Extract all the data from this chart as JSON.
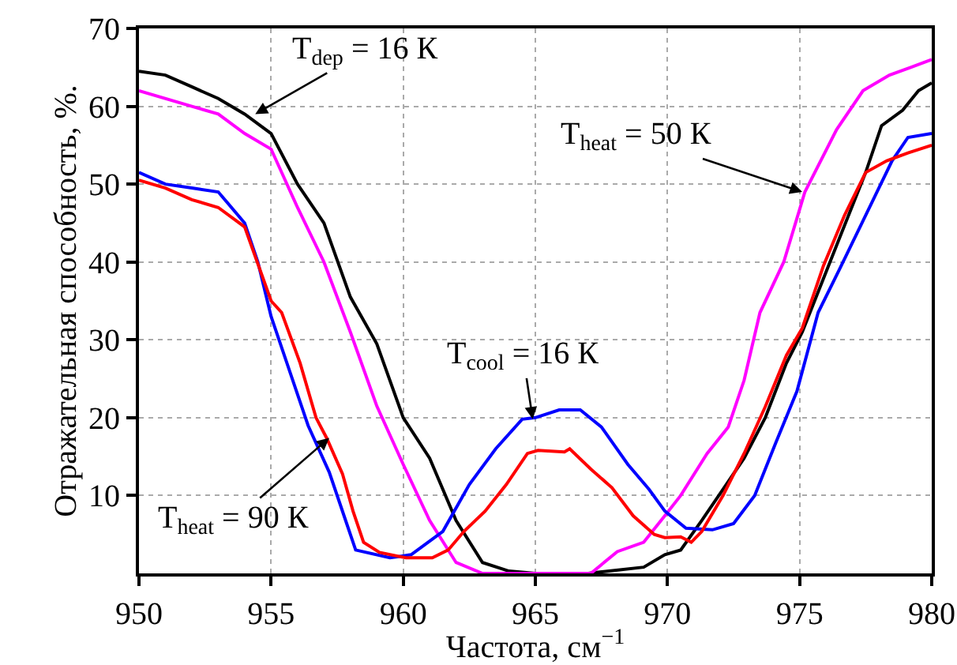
{
  "chart_data": {
    "type": "line",
    "xlabel": "Частота, см$^{−1}$",
    "ylabel": "Отражательная способность, %.",
    "xlim": [
      950,
      980
    ],
    "ylim": [
      0,
      70
    ],
    "xticks": [
      950,
      955,
      960,
      965,
      970,
      975,
      980
    ],
    "yticks": [
      10,
      20,
      30,
      40,
      50,
      60,
      70
    ],
    "grid": true,
    "marker": "none",
    "line_style": "solid",
    "series": [
      {
        "color": "#000000",
        "x": [
          950,
          951,
          952,
          953,
          954,
          955,
          956,
          957,
          958,
          959,
          960,
          961,
          962,
          963,
          964,
          965,
          967,
          969.1,
          969.9,
          970.5,
          971.3,
          972.1,
          972.9,
          973.7,
          974.5,
          975.1,
          976.5,
          977.5,
          978.1,
          978.9,
          979.5,
          980
        ],
        "values": [
          64.5,
          64,
          62.5,
          61,
          59,
          56.5,
          50,
          45,
          35.5,
          29.5,
          20,
          14.8,
          6.8,
          1.4,
          0.3,
          0,
          0,
          0.8,
          2.4,
          3,
          6.8,
          10.8,
          14.8,
          20,
          27,
          31,
          43,
          51.5,
          57.5,
          59.5,
          62,
          63
        ]
      },
      {
        "color": "#ff00ff",
        "x": [
          950,
          952,
          953,
          954,
          955,
          956,
          957,
          958,
          959,
          960,
          961,
          962,
          963,
          965,
          967.1,
          968.1,
          969.1,
          969.9,
          970.5,
          971.5,
          972.3,
          972.9,
          973.5,
          974.4,
          975.2,
          976.4,
          977.4,
          978.4,
          979.2,
          980
        ],
        "values": [
          62,
          60,
          59,
          56.5,
          54.5,
          47,
          40,
          31,
          21.5,
          14,
          6.8,
          1.4,
          0,
          0,
          0,
          2.8,
          4,
          7.4,
          10,
          15.4,
          18.8,
          24.8,
          33.5,
          40,
          49,
          57,
          62,
          64,
          65,
          66
        ]
      },
      {
        "color": "#0000ff",
        "x": [
          950,
          951,
          952,
          953,
          954,
          954.5,
          955,
          955.6,
          956.4,
          957.2,
          957.8,
          958.2,
          959.5,
          960.3,
          961.5,
          962.5,
          963.5,
          964.5,
          965,
          965.9,
          966.7,
          967.5,
          968.5,
          969.3,
          969.9,
          970.7,
          971.7,
          972.5,
          973.3,
          974.1,
          974.9,
          975.7,
          976.5,
          977.5,
          978.5,
          979.1,
          980
        ],
        "values": [
          51.5,
          50,
          49.5,
          49,
          45,
          40,
          33,
          27,
          19,
          13,
          7,
          3,
          2,
          2.4,
          5.4,
          11.4,
          16,
          19.8,
          20,
          21,
          21,
          18.8,
          14,
          10.8,
          8,
          5.8,
          5.6,
          6.4,
          10,
          16.8,
          23.4,
          33.5,
          39,
          46,
          53,
          56,
          56.5
        ]
      },
      {
        "color": "#ff0000",
        "x": [
          950,
          951,
          952,
          953,
          954,
          955,
          955.4,
          956.1,
          956.7,
          957.1,
          957.7,
          958.1,
          958.5,
          959.1,
          960.1,
          961.1,
          961.7,
          962.3,
          963.1,
          963.9,
          964.7,
          965.1,
          966.1,
          966.3,
          967.1,
          967.9,
          968.7,
          969.5,
          969.9,
          970.5,
          970.9,
          971.3,
          972.1,
          972.9,
          973.7,
          974.5,
          975.1,
          975.9,
          976.7,
          977.5,
          978.3,
          979.1,
          980
        ],
        "values": [
          50.5,
          49.5,
          48,
          47,
          44.5,
          35,
          33.5,
          27,
          20,
          17.4,
          12.8,
          8,
          4,
          2.7,
          2,
          2,
          3,
          5.4,
          8,
          11.4,
          15.4,
          15.8,
          15.6,
          16,
          13.4,
          11,
          7.4,
          5,
          4.6,
          4.7,
          4,
          5.4,
          10,
          15.4,
          21.4,
          28,
          31.5,
          39.5,
          46,
          51.5,
          53,
          54,
          55
        ]
      }
    ],
    "annotations": [
      {
        "text": "T$_{dep}$ = 16 К",
        "x": 954.4,
        "y": 59
      },
      {
        "text": "T$_{heat}$ = 50 К",
        "x": 975.1,
        "y": 49
      },
      {
        "text": "T$_{cool}$ = 16 К",
        "x": 964.9,
        "y": 19.8
      },
      {
        "text": "T$_{heat}$ = 90 К",
        "x": 957.2,
        "y": 17.4
      }
    ]
  }
}
